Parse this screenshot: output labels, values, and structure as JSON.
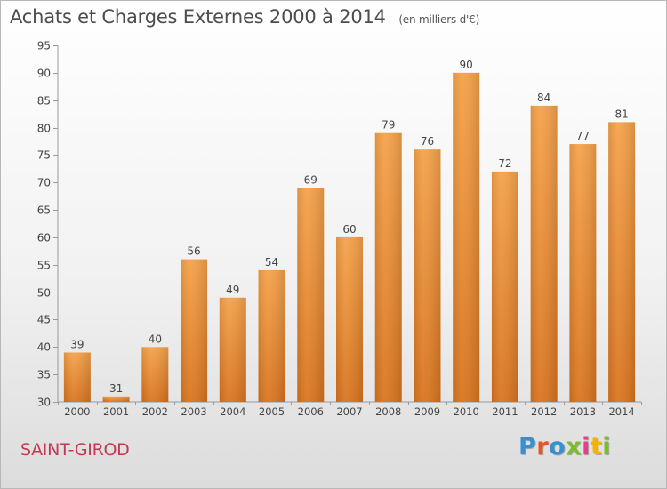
{
  "header": {
    "title": "Achats et Charges Externes 2000 à 2014",
    "subtitle": "(en milliers d'€)"
  },
  "footer": {
    "commune": "SAINT-GIROD",
    "logo_text": "Proxiti",
    "logo_colors": [
      "#3a8fd1",
      "#e8541d",
      "#3a8fd1",
      "#7bbd2b",
      "#e83c8a",
      "#f4b300",
      "#7bbd2b"
    ]
  },
  "chart_data": {
    "type": "bar",
    "title": "Achats et Charges Externes 2000 à 2014",
    "xlabel": "",
    "ylabel": "",
    "categories": [
      "2000",
      "2001",
      "2002",
      "2003",
      "2004",
      "2005",
      "2006",
      "2007",
      "2008",
      "2009",
      "2010",
      "2011",
      "2012",
      "2013",
      "2014"
    ],
    "values": [
      39,
      31,
      40,
      56,
      49,
      54,
      69,
      60,
      79,
      76,
      90,
      72,
      84,
      77,
      81
    ],
    "ylim": [
      30,
      95
    ],
    "yticks": [
      30,
      35,
      40,
      45,
      50,
      55,
      60,
      65,
      70,
      75,
      80,
      85,
      90,
      95
    ],
    "bar_color_top": "#f5a24a",
    "bar_color_bottom": "#d9741e",
    "grid": false,
    "data_labels": true
  }
}
